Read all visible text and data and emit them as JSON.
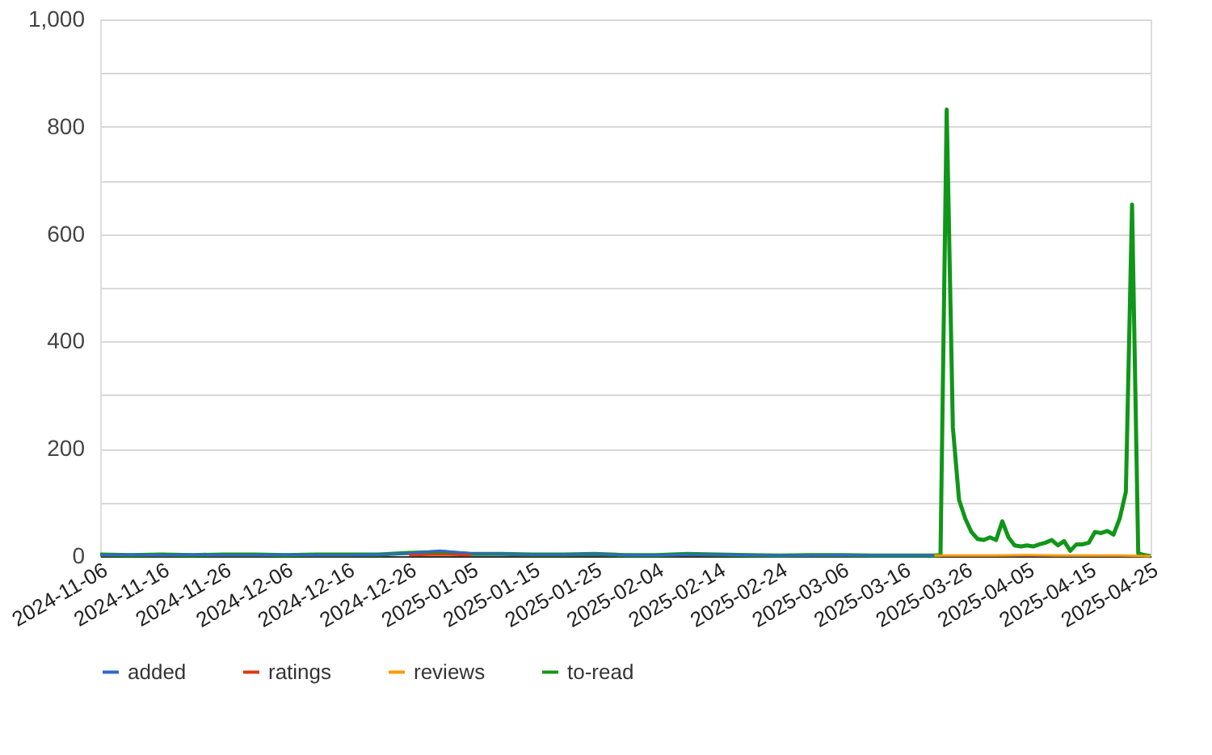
{
  "chart_data": {
    "type": "line",
    "xlim": [
      "2024-11-06",
      "2025-04-25"
    ],
    "xticks": [
      "2024-11-06",
      "2024-11-16",
      "2024-11-26",
      "2024-12-06",
      "2024-12-16",
      "2024-12-26",
      "2025-01-05",
      "2025-01-15",
      "2025-01-25",
      "2025-02-04",
      "2025-02-14",
      "2025-02-24",
      "2025-03-06",
      "2025-03-16",
      "2025-03-26",
      "2025-04-05",
      "2025-04-15",
      "2025-04-25"
    ],
    "ylim": [
      0,
      1000
    ],
    "yticks": [
      0,
      {
        "value": 100,
        "label": null
      },
      200,
      {
        "value": 300,
        "label": null
      },
      400,
      {
        "value": 500,
        "label": null
      },
      600,
      {
        "value": 700,
        "label": null
      },
      800,
      {
        "value": 900,
        "label": null
      },
      {
        "value": 1000,
        "label": "1,000"
      }
    ],
    "grid": "y",
    "legend": "bottom",
    "marker": "none",
    "line_style": "solid",
    "x": [
      "2024-11-06",
      "2024-11-11",
      "2024-11-16",
      "2024-11-21",
      "2024-11-26",
      "2024-12-01",
      "2024-12-06",
      "2024-12-11",
      "2024-12-16",
      "2024-12-21",
      "2024-12-26",
      "2024-12-31",
      "2025-01-05",
      "2025-01-10",
      "2025-01-15",
      "2025-01-20",
      "2025-01-25",
      "2025-01-30",
      "2025-02-04",
      "2025-02-09",
      "2025-02-14",
      "2025-02-19",
      "2025-02-24",
      "2025-03-01",
      "2025-03-06",
      "2025-03-11",
      "2025-03-16",
      "2025-03-21",
      "2025-03-26",
      "2025-03-31",
      "2025-04-05",
      "2025-04-10",
      "2025-04-15",
      "2025-04-20",
      "2025-04-25"
    ],
    "series": [
      {
        "name": "added",
        "color": "#3366cc",
        "values": [
          2,
          3,
          2,
          3,
          2,
          2,
          3,
          2,
          2,
          3,
          5,
          10,
          5,
          4,
          3,
          3,
          4,
          2,
          2,
          3,
          3,
          2,
          1,
          1,
          2,
          1,
          1,
          1,
          null,
          null,
          null,
          null,
          null,
          null,
          null
        ]
      },
      {
        "name": "ratings",
        "color": "#dc3912",
        "values": [
          null,
          null,
          null,
          null,
          null,
          null,
          null,
          null,
          null,
          null,
          2,
          3,
          2,
          null,
          null,
          null,
          null,
          null,
          null,
          null,
          null,
          null,
          null,
          null,
          null,
          null,
          null,
          null,
          null,
          null,
          null,
          null,
          null,
          null,
          null
        ]
      },
      {
        "name": "reviews",
        "color": "#ff9900",
        "values": [
          null,
          null,
          null,
          null,
          null,
          null,
          null,
          null,
          null,
          null,
          null,
          null,
          null,
          null,
          null,
          null,
          null,
          null,
          null,
          null,
          null,
          null,
          null,
          null,
          null,
          null,
          null,
          1,
          1,
          1,
          2,
          1,
          1,
          1,
          0
        ]
      },
      {
        "name": "to-read",
        "color": "#109618",
        "x": [
          "2024-11-06",
          "2024-11-11",
          "2024-11-16",
          "2024-11-21",
          "2024-11-26",
          "2024-12-01",
          "2024-12-06",
          "2024-12-11",
          "2024-12-16",
          "2024-12-21",
          "2024-12-26",
          "2024-12-31",
          "2025-01-05",
          "2025-01-10",
          "2025-01-15",
          "2025-01-20",
          "2025-01-25",
          "2025-01-30",
          "2025-02-04",
          "2025-02-09",
          "2025-02-14",
          "2025-02-19",
          "2025-02-24",
          "2025-03-01",
          "2025-03-06",
          "2025-03-11",
          "2025-03-16",
          "2025-03-21",
          "2025-03-22",
          "2025-03-23",
          "2025-03-24",
          "2025-03-25",
          "2025-03-26",
          "2025-03-27",
          "2025-03-28",
          "2025-03-29",
          "2025-03-30",
          "2025-03-31",
          "2025-04-01",
          "2025-04-02",
          "2025-04-03",
          "2025-04-04",
          "2025-04-05",
          "2025-04-06",
          "2025-04-07",
          "2025-04-08",
          "2025-04-09",
          "2025-04-10",
          "2025-04-11",
          "2025-04-12",
          "2025-04-13",
          "2025-04-14",
          "2025-04-15",
          "2025-04-16",
          "2025-04-17",
          "2025-04-18",
          "2025-04-19",
          "2025-04-20",
          "2025-04-21",
          "2025-04-22",
          "2025-04-23",
          "2025-04-24",
          "2025-04-25"
        ],
        "values": [
          3,
          2,
          3,
          2,
          3,
          3,
          2,
          3,
          3,
          3,
          6,
          8,
          4,
          4,
          3,
          3,
          4,
          2,
          2,
          4,
          3,
          2,
          1,
          2,
          2,
          1,
          1,
          1,
          2,
          832,
          240,
          105,
          70,
          45,
          32,
          30,
          35,
          30,
          65,
          35,
          20,
          18,
          20,
          18,
          22,
          25,
          30,
          20,
          28,
          10,
          22,
          22,
          25,
          45,
          43,
          47,
          40,
          70,
          120,
          655,
          5,
          2,
          0
        ]
      }
    ]
  }
}
